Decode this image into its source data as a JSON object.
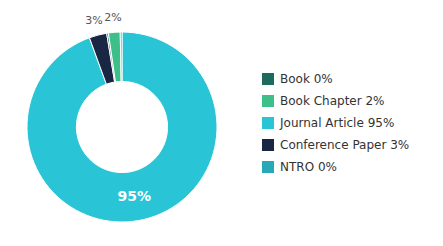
{
  "chart_data": {
    "type": "pie",
    "values": [
      95,
      3,
      0.3,
      2,
      0.3
    ],
    "colors": [
      "#29c5d6",
      "#1a2744",
      "#1d6b5e",
      "#3dbf8a",
      "#29a8b8"
    ],
    "data_labels": true,
    "value_labels": [
      "95%",
      "3%",
      null,
      "2%",
      null
    ],
    "legend": "right",
    "legend_entries": [
      {
        "label": "Book 0%",
        "color": "#1d6b5e"
      },
      {
        "label": "Book Chapter 2%",
        "color": "#3dbf8a"
      },
      {
        "label": "Journal Article 95%",
        "color": "#29c5d6"
      },
      {
        "label": "Conference Paper 3%",
        "color": "#1a2744"
      },
      {
        "label": "NTRO 0%",
        "color": "#29a8b8"
      }
    ]
  }
}
